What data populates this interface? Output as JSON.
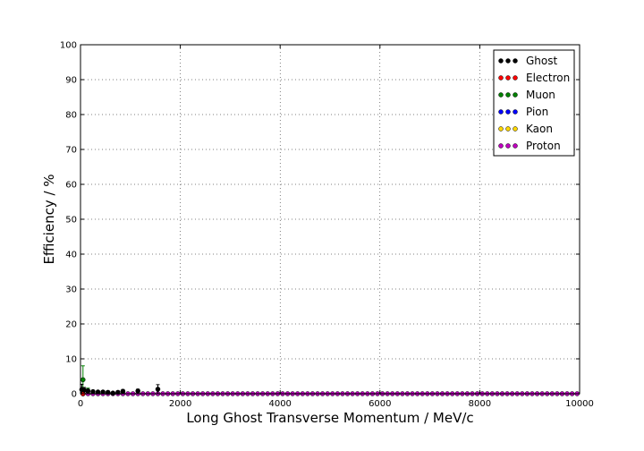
{
  "chart_data": {
    "type": "scatter",
    "title": "",
    "xlabel": "Long Ghost Transverse Momentum / MeV/c",
    "ylabel": "Efficiency / %",
    "xlim": [
      0,
      10000
    ],
    "ylim": [
      0,
      100
    ],
    "x_ticks": [
      "0",
      "2000",
      "4000",
      "6000",
      "8000",
      "10000"
    ],
    "y_ticks": [
      "0",
      "10",
      "20",
      "30",
      "40",
      "50",
      "60",
      "70",
      "80",
      "90",
      "100"
    ],
    "grid": true,
    "legend_placement": "top-right",
    "series": [
      {
        "name": "Ghost",
        "color": "#000000",
        "points": [
          {
            "x": 25,
            "y": 1.2,
            "err": 1.5
          },
          {
            "x": 75,
            "y": 1.0,
            "err": 0.8
          },
          {
            "x": 150,
            "y": 0.8,
            "err": 0.5
          },
          {
            "x": 250,
            "y": 0.6,
            "err": 0.4
          },
          {
            "x": 350,
            "y": 0.5,
            "err": 0.3
          },
          {
            "x": 450,
            "y": 0.5,
            "err": 0.4
          },
          {
            "x": 550,
            "y": 0.4,
            "err": 0.4
          },
          {
            "x": 650,
            "y": 0.2,
            "err": 0.3
          },
          {
            "x": 750,
            "y": 0.4,
            "err": 0.4
          },
          {
            "x": 850,
            "y": 0.7,
            "err": 0.5
          },
          {
            "x": 1150,
            "y": 0.8,
            "err": 0.5
          },
          {
            "x": 1550,
            "y": 1.3,
            "err": 1.3
          }
        ]
      },
      {
        "name": "Electron",
        "color": "#ff0000",
        "points": [
          {
            "x": 50,
            "y": 0.0,
            "err": 0.0
          }
        ]
      },
      {
        "name": "Muon",
        "color": "#008000",
        "points": [
          {
            "x": 50,
            "y": 4.0,
            "err": 4.0
          },
          {
            "x": 150,
            "y": 0.8,
            "err": 0.8
          }
        ]
      },
      {
        "name": "Pion",
        "color": "#0000ff",
        "points": [
          {
            "x": 50,
            "y": 0.0,
            "err": 0.0
          }
        ]
      },
      {
        "name": "Kaon",
        "color": "#ffd700",
        "points": [
          {
            "x": 50,
            "y": 0.0,
            "err": 0.0
          }
        ]
      },
      {
        "name": "Proton",
        "color": "#bf00bf",
        "fill_range": {
          "start": 50,
          "end": 9950,
          "step": 100,
          "y": 0.0
        }
      }
    ]
  }
}
